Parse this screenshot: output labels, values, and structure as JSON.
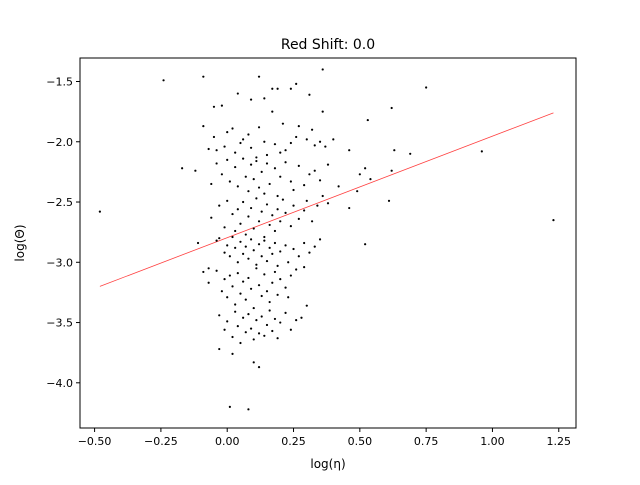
{
  "chart_data": {
    "type": "scatter",
    "title": "Red Shift: 0.0",
    "xlabel": "log(η)",
    "ylabel": "log(Θ)",
    "xlim": [
      -0.555,
      1.315
    ],
    "ylim": [
      -4.375,
      -1.305
    ],
    "xticks": [
      -0.5,
      -0.25,
      0.0,
      0.25,
      0.5,
      0.75,
      1.0,
      1.25
    ],
    "xtick_labels": [
      "−0.50",
      "−0.25",
      "0.00",
      "0.25",
      "0.50",
      "0.75",
      "1.00",
      "1.25"
    ],
    "yticks": [
      -4.0,
      -3.5,
      -3.0,
      -2.5,
      -2.0,
      -1.5
    ],
    "ytick_labels": [
      "−4.0",
      "−3.5",
      "−3.0",
      "−2.5",
      "−2.0",
      "−1.5"
    ],
    "grid": false,
    "series": [
      {
        "name": "data",
        "kind": "scatter",
        "color": "#000000",
        "points": [
          [
            -0.48,
            -2.58
          ],
          [
            -0.24,
            -1.49
          ],
          [
            -0.09,
            -1.46
          ],
          [
            -0.05,
            -1.71
          ],
          [
            -0.02,
            -1.7
          ],
          [
            0.04,
            -1.6
          ],
          [
            0.12,
            -1.46
          ],
          [
            0.09,
            -1.65
          ],
          [
            0.14,
            -1.64
          ],
          [
            0.17,
            -1.56
          ],
          [
            0.19,
            -1.56
          ],
          [
            0.24,
            -1.56
          ],
          [
            0.26,
            -1.52
          ],
          [
            0.36,
            -1.4
          ],
          [
            0.31,
            -1.61
          ],
          [
            -0.09,
            -1.87
          ],
          [
            -0.07,
            -2.06
          ],
          [
            -0.05,
            -1.96
          ],
          [
            -0.04,
            -2.07
          ],
          [
            -0.01,
            -2.04
          ],
          [
            0.0,
            -1.92
          ],
          [
            0.02,
            -1.89
          ],
          [
            0.03,
            -2.09
          ],
          [
            0.05,
            -2.01
          ],
          [
            0.06,
            -1.98
          ],
          [
            0.08,
            -1.94
          ],
          [
            0.09,
            -2.05
          ],
          [
            0.11,
            -2.13
          ],
          [
            0.12,
            -1.88
          ],
          [
            0.14,
            -2.0
          ],
          [
            0.15,
            -2.11
          ],
          [
            0.17,
            -1.75
          ],
          [
            0.18,
            -2.02
          ],
          [
            0.2,
            -2.09
          ],
          [
            0.21,
            -1.85
          ],
          [
            0.22,
            -2.07
          ],
          [
            0.24,
            -2.01
          ],
          [
            0.26,
            -1.96
          ],
          [
            0.27,
            -1.87
          ],
          [
            0.3,
            -1.98
          ],
          [
            0.32,
            -1.9
          ],
          [
            0.33,
            -2.03
          ],
          [
            0.35,
            -2.0
          ],
          [
            0.37,
            -2.04
          ],
          [
            0.4,
            -1.98
          ],
          [
            0.36,
            -1.75
          ],
          [
            0.46,
            -2.07
          ],
          [
            -0.17,
            -2.22
          ],
          [
            -0.12,
            -2.24
          ],
          [
            -0.06,
            -2.35
          ],
          [
            -0.04,
            -2.18
          ],
          [
            -0.02,
            -2.27
          ],
          [
            0.0,
            -2.15
          ],
          [
            0.01,
            -2.33
          ],
          [
            0.03,
            -2.21
          ],
          [
            0.04,
            -2.37
          ],
          [
            0.06,
            -2.14
          ],
          [
            0.07,
            -2.29
          ],
          [
            0.08,
            -2.41
          ],
          [
            0.09,
            -2.19
          ],
          [
            0.1,
            -2.31
          ],
          [
            0.11,
            -2.16
          ],
          [
            0.12,
            -2.38
          ],
          [
            0.13,
            -2.25
          ],
          [
            0.14,
            -2.43
          ],
          [
            0.15,
            -2.18
          ],
          [
            0.16,
            -2.35
          ],
          [
            0.18,
            -2.22
          ],
          [
            0.19,
            -2.45
          ],
          [
            0.2,
            -2.29
          ],
          [
            0.22,
            -2.17
          ],
          [
            0.24,
            -2.33
          ],
          [
            0.25,
            -2.4
          ],
          [
            0.27,
            -2.2
          ],
          [
            0.29,
            -2.36
          ],
          [
            0.31,
            -2.27
          ],
          [
            0.33,
            -2.24
          ],
          [
            0.35,
            -2.32
          ],
          [
            0.38,
            -2.19
          ],
          [
            0.42,
            -2.37
          ],
          [
            0.5,
            -2.27
          ],
          [
            0.52,
            -2.22
          ],
          [
            0.54,
            -2.31
          ],
          [
            0.63,
            -2.07
          ],
          [
            0.62,
            -2.24
          ],
          [
            0.69,
            -2.1
          ],
          [
            0.96,
            -2.08
          ],
          [
            0.53,
            -1.82
          ],
          [
            0.75,
            -1.55
          ],
          [
            0.62,
            -1.72
          ],
          [
            -0.06,
            -2.63
          ],
          [
            -0.03,
            -2.53
          ],
          [
            -0.01,
            -2.71
          ],
          [
            0.0,
            -2.49
          ],
          [
            0.02,
            -2.6
          ],
          [
            0.03,
            -2.74
          ],
          [
            0.04,
            -2.56
          ],
          [
            0.05,
            -2.68
          ],
          [
            0.06,
            -2.5
          ],
          [
            0.07,
            -2.77
          ],
          [
            0.08,
            -2.62
          ],
          [
            0.09,
            -2.55
          ],
          [
            0.1,
            -2.72
          ],
          [
            0.11,
            -2.47
          ],
          [
            0.12,
            -2.66
          ],
          [
            0.13,
            -2.58
          ],
          [
            0.14,
            -2.79
          ],
          [
            0.15,
            -2.52
          ],
          [
            0.16,
            -2.69
          ],
          [
            0.17,
            -2.61
          ],
          [
            0.18,
            -2.74
          ],
          [
            0.19,
            -2.56
          ],
          [
            0.2,
            -2.66
          ],
          [
            0.21,
            -2.48
          ],
          [
            0.22,
            -2.59
          ],
          [
            0.24,
            -2.7
          ],
          [
            0.25,
            -2.53
          ],
          [
            0.27,
            -2.64
          ],
          [
            0.29,
            -2.57
          ],
          [
            0.3,
            -2.49
          ],
          [
            0.32,
            -2.66
          ],
          [
            0.34,
            -2.53
          ],
          [
            0.36,
            -2.45
          ],
          [
            0.38,
            -2.51
          ],
          [
            0.46,
            -2.55
          ],
          [
            0.49,
            -2.41
          ],
          [
            0.61,
            -2.49
          ],
          [
            1.23,
            -2.65
          ],
          [
            -0.11,
            -2.84
          ],
          [
            -0.07,
            -3.05
          ],
          [
            -0.04,
            -2.82
          ],
          [
            -0.03,
            -2.8
          ],
          [
            -0.01,
            -2.92
          ],
          [
            0.0,
            -2.86
          ],
          [
            0.01,
            -2.95
          ],
          [
            0.02,
            -2.79
          ],
          [
            0.03,
            -2.88
          ],
          [
            0.04,
            -3.0
          ],
          [
            0.05,
            -2.83
          ],
          [
            0.06,
            -2.93
          ],
          [
            0.07,
            -2.87
          ],
          [
            0.08,
            -2.97
          ],
          [
            0.09,
            -2.81
          ],
          [
            0.1,
            -2.9
          ],
          [
            0.11,
            -3.02
          ],
          [
            0.12,
            -2.85
          ],
          [
            0.13,
            -2.95
          ],
          [
            0.14,
            -2.82
          ],
          [
            0.15,
            -2.99
          ],
          [
            0.16,
            -2.88
          ],
          [
            0.17,
            -2.93
          ],
          [
            0.18,
            -2.84
          ],
          [
            0.19,
            -3.03
          ],
          [
            0.2,
            -2.91
          ],
          [
            0.22,
            -2.86
          ],
          [
            0.23,
            -3.0
          ],
          [
            0.25,
            -2.89
          ],
          [
            0.27,
            -2.95
          ],
          [
            0.29,
            -2.84
          ],
          [
            0.31,
            -2.92
          ],
          [
            0.33,
            -2.87
          ],
          [
            0.35,
            -2.81
          ],
          [
            0.52,
            -2.85
          ],
          [
            -0.09,
            -3.08
          ],
          [
            -0.07,
            -3.17
          ],
          [
            -0.04,
            -3.07
          ],
          [
            -0.02,
            -3.24
          ],
          [
            -0.01,
            -3.14
          ],
          [
            0.0,
            -3.29
          ],
          [
            0.01,
            -3.11
          ],
          [
            0.02,
            -3.2
          ],
          [
            0.03,
            -3.35
          ],
          [
            0.04,
            -3.09
          ],
          [
            0.05,
            -3.26
          ],
          [
            0.06,
            -3.16
          ],
          [
            0.07,
            -3.31
          ],
          [
            0.08,
            -3.13
          ],
          [
            0.09,
            -3.22
          ],
          [
            0.1,
            -3.38
          ],
          [
            0.11,
            -3.05
          ],
          [
            0.12,
            -3.19
          ],
          [
            0.13,
            -3.28
          ],
          [
            0.14,
            -3.1
          ],
          [
            0.15,
            -3.24
          ],
          [
            0.16,
            -3.33
          ],
          [
            0.17,
            -3.17
          ],
          [
            0.18,
            -3.08
          ],
          [
            0.19,
            -3.27
          ],
          [
            0.2,
            -3.14
          ],
          [
            0.22,
            -3.21
          ],
          [
            0.24,
            -3.11
          ],
          [
            0.26,
            -3.06
          ],
          [
            0.29,
            -3.04
          ],
          [
            -0.03,
            -3.44
          ],
          [
            -0.01,
            -3.56
          ],
          [
            0.0,
            -3.49
          ],
          [
            0.02,
            -3.62
          ],
          [
            0.03,
            -3.41
          ],
          [
            0.04,
            -3.53
          ],
          [
            0.05,
            -3.67
          ],
          [
            0.06,
            -3.46
          ],
          [
            0.07,
            -3.58
          ],
          [
            0.08,
            -3.43
          ],
          [
            0.09,
            -3.55
          ],
          [
            0.1,
            -3.64
          ],
          [
            0.11,
            -3.48
          ],
          [
            0.12,
            -3.59
          ],
          [
            0.13,
            -3.45
          ],
          [
            0.14,
            -3.61
          ],
          [
            0.15,
            -3.52
          ],
          [
            0.16,
            -3.4
          ],
          [
            0.17,
            -3.57
          ],
          [
            0.18,
            -3.47
          ],
          [
            0.19,
            -3.63
          ],
          [
            0.2,
            -3.5
          ],
          [
            0.22,
            -3.42
          ],
          [
            0.24,
            -3.56
          ],
          [
            0.26,
            -3.48
          ],
          [
            0.28,
            -3.46
          ],
          [
            0.3,
            -3.36
          ],
          [
            0.23,
            -3.29
          ],
          [
            -0.03,
            -3.72
          ],
          [
            0.02,
            -3.76
          ],
          [
            0.1,
            -3.83
          ],
          [
            0.12,
            -3.87
          ],
          [
            0.01,
            -4.2
          ],
          [
            0.08,
            -4.22
          ]
        ]
      },
      {
        "name": "fit",
        "kind": "line",
        "color": "#ff0000",
        "points": [
          [
            -0.48,
            -3.2
          ],
          [
            1.23,
            -1.76
          ]
        ]
      }
    ]
  }
}
